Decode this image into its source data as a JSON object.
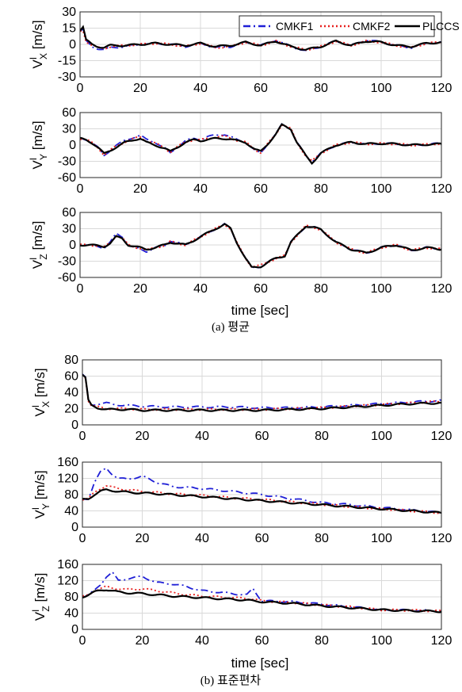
{
  "captions": [
    "(a) 평균",
    "(b) 표준편차"
  ],
  "legend": [
    "CMKF1",
    "CMKF2",
    "PLCCS"
  ],
  "x_axis_title": "time [sec]",
  "colors": {
    "CMKF1": "#1f1fd6",
    "CMKF2": "#e8201e",
    "PLCCS": "#000000",
    "grid": "#d9d9d9",
    "axes": "#262626"
  },
  "chart_data": [
    {
      "type": "line",
      "panel": "a1",
      "ylabel": "V^I_X [m/s]",
      "ylabel_main": "V",
      "ylabel_sup": "I",
      "ylabel_sub": "X",
      "ylabel_unit": "[m/s]",
      "xlim": [
        0,
        120
      ],
      "ylim": [
        -30,
        30
      ],
      "xticks": [
        0,
        20,
        40,
        60,
        80,
        100,
        120
      ],
      "yticks": [
        -30,
        -15,
        0,
        15,
        30
      ],
      "grid": true,
      "legend_position": "top-right",
      "x": [
        0,
        1,
        2,
        4,
        6,
        8,
        10,
        15,
        20,
        25,
        30,
        35,
        40,
        45,
        50,
        55,
        60,
        65,
        70,
        75,
        80,
        85,
        90,
        95,
        100,
        105,
        110,
        115,
        120
      ],
      "series": [
        {
          "name": "CMKF1",
          "values": [
            12,
            14,
            3,
            -2,
            -4,
            -5,
            -3,
            -2,
            0,
            1,
            0,
            -2,
            1,
            -3,
            -2,
            2,
            -1,
            4,
            -2,
            -6,
            -2,
            3,
            -1,
            4,
            2,
            -1,
            -3,
            1,
            2
          ]
        },
        {
          "name": "CMKF2",
          "values": [
            12,
            13,
            3,
            -1,
            -3,
            -4,
            -2,
            -1,
            0,
            1,
            0,
            -2,
            1,
            -3,
            -2,
            2,
            -1,
            3,
            -2,
            -5,
            -2,
            3,
            -1,
            3,
            2,
            -1,
            -3,
            1,
            2
          ]
        },
        {
          "name": "PLCCS",
          "values": [
            13,
            16,
            4,
            0,
            -2,
            -3,
            -1,
            -1,
            0,
            1,
            0,
            -1,
            1,
            -2,
            -1,
            2,
            -1,
            3,
            -2,
            -5,
            -2,
            3,
            -1,
            3,
            2,
            -1,
            -2,
            1,
            2
          ]
        }
      ]
    },
    {
      "type": "line",
      "panel": "a2",
      "ylabel": "V^I_Y [m/s]",
      "ylabel_main": "V",
      "ylabel_sup": "I",
      "ylabel_sub": "Y",
      "ylabel_unit": "[m/s]",
      "xlim": [
        0,
        120
      ],
      "ylim": [
        -60,
        60
      ],
      "xticks": [
        0,
        20,
        40,
        60,
        80,
        100,
        120
      ],
      "yticks": [
        -60,
        -30,
        0,
        30,
        60
      ],
      "grid": true,
      "x": [
        0,
        2,
        4,
        6,
        8,
        10,
        12,
        15,
        18,
        20,
        22,
        25,
        28,
        30,
        32,
        35,
        38,
        40,
        42,
        45,
        48,
        50,
        52,
        55,
        58,
        60,
        62,
        65,
        67,
        70,
        72,
        75,
        77,
        80,
        85,
        90,
        95,
        100,
        105,
        110,
        115,
        120
      ],
      "series": [
        {
          "name": "CMKF1",
          "values": [
            12,
            10,
            5,
            -5,
            -20,
            -10,
            0,
            8,
            15,
            18,
            10,
            5,
            -5,
            -15,
            -5,
            8,
            12,
            10,
            15,
            18,
            20,
            15,
            10,
            5,
            -10,
            -15,
            0,
            20,
            38,
            30,
            5,
            -20,
            -30,
            -15,
            0,
            5,
            2,
            3,
            2,
            0,
            1,
            3
          ]
        },
        {
          "name": "CMKF2",
          "values": [
            12,
            10,
            4,
            -5,
            -18,
            -10,
            -2,
            6,
            12,
            15,
            8,
            3,
            -5,
            -13,
            -5,
            6,
            10,
            9,
            12,
            15,
            16,
            13,
            9,
            5,
            -8,
            -14,
            0,
            20,
            38,
            30,
            5,
            -20,
            -30,
            -15,
            0,
            5,
            2,
            3,
            2,
            0,
            1,
            3
          ]
        },
        {
          "name": "PLCCS",
          "values": [
            12,
            10,
            4,
            -5,
            -16,
            -10,
            -4,
            5,
            10,
            12,
            5,
            0,
            -6,
            -12,
            -5,
            5,
            10,
            8,
            10,
            12,
            12,
            11,
            8,
            5,
            -8,
            -12,
            0,
            20,
            37,
            30,
            5,
            -20,
            -33,
            -15,
            0,
            5,
            2,
            3,
            2,
            0,
            1,
            2
          ]
        }
      ]
    },
    {
      "type": "line",
      "panel": "a3",
      "ylabel": "V^I_Z [m/s]",
      "ylabel_main": "V",
      "ylabel_sup": "I",
      "ylabel_sub": "Z",
      "ylabel_unit": "[m/s]",
      "xlim": [
        0,
        120
      ],
      "ylim": [
        -60,
        60
      ],
      "xticks": [
        0,
        20,
        40,
        60,
        80,
        100,
        120
      ],
      "yticks": [
        -60,
        -30,
        0,
        30,
        60
      ],
      "grid": true,
      "x": [
        0,
        3,
        5,
        8,
        10,
        12,
        14,
        16,
        18,
        20,
        22,
        25,
        28,
        30,
        35,
        40,
        45,
        48,
        50,
        52,
        55,
        57,
        60,
        63,
        65,
        68,
        70,
        75,
        78,
        80,
        85,
        90,
        95,
        100,
        105,
        110,
        115,
        120
      ],
      "series": [
        {
          "name": "CMKF1",
          "values": [
            0,
            0,
            -2,
            -5,
            5,
            20,
            15,
            0,
            -5,
            -8,
            -12,
            -5,
            -2,
            8,
            0,
            15,
            30,
            38,
            30,
            5,
            -25,
            -42,
            -40,
            -30,
            -25,
            -20,
            5,
            35,
            32,
            28,
            5,
            -8,
            -15,
            -5,
            0,
            -10,
            -5,
            -8
          ]
        },
        {
          "name": "CMKF2",
          "values": [
            0,
            0,
            -1,
            -4,
            4,
            17,
            13,
            0,
            -4,
            -6,
            -10,
            -5,
            -1,
            6,
            0,
            15,
            30,
            38,
            30,
            5,
            -25,
            -40,
            -38,
            -30,
            -25,
            -20,
            5,
            35,
            32,
            28,
            5,
            -8,
            -15,
            -5,
            0,
            -10,
            -5,
            -8
          ]
        },
        {
          "name": "PLCCS",
          "values": [
            0,
            0,
            -1,
            -3,
            3,
            15,
            12,
            0,
            -3,
            -5,
            -8,
            -5,
            0,
            5,
            0,
            15,
            30,
            38,
            30,
            5,
            -25,
            -42,
            -40,
            -30,
            -25,
            -20,
            5,
            35,
            32,
            28,
            5,
            -8,
            -15,
            -5,
            0,
            -10,
            -5,
            -8
          ]
        }
      ]
    },
    {
      "type": "line",
      "panel": "b1",
      "ylabel": "V^I_X [m/s]",
      "ylabel_main": "V",
      "ylabel_sup": "I",
      "ylabel_sub": "X",
      "ylabel_unit": "[m/s]",
      "xlim": [
        0,
        120
      ],
      "ylim": [
        0,
        80
      ],
      "xticks": [
        0,
        20,
        40,
        60,
        80,
        100,
        120
      ],
      "yticks": [
        0,
        20,
        40,
        60,
        80
      ],
      "grid": true,
      "x": [
        0,
        1,
        2,
        3,
        5,
        8,
        10,
        15,
        20,
        30,
        40,
        50,
        60,
        70,
        80,
        90,
        100,
        110,
        120
      ],
      "series": [
        {
          "name": "CMKF1",
          "values": [
            62,
            58,
            30,
            24,
            26,
            27,
            25,
            24,
            23,
            22,
            22,
            22,
            21,
            21,
            22,
            24,
            26,
            28,
            30
          ]
        },
        {
          "name": "CMKF2",
          "values": [
            62,
            58,
            30,
            24,
            22,
            20,
            20,
            20,
            19,
            19,
            19,
            19,
            19,
            20,
            21,
            23,
            25,
            27,
            29
          ]
        },
        {
          "name": "PLCCS",
          "values": [
            62,
            58,
            30,
            24,
            21,
            19,
            19,
            19,
            18,
            18,
            18,
            18,
            18,
            19,
            20,
            22,
            24,
            26,
            27
          ]
        }
      ]
    },
    {
      "type": "line",
      "panel": "b2",
      "ylabel": "V^I_Y [m/s]",
      "ylabel_main": "V",
      "ylabel_sup": "I",
      "ylabel_sub": "Y",
      "ylabel_unit": "[m/s]",
      "xlim": [
        0,
        120
      ],
      "ylim": [
        0,
        160
      ],
      "xticks": [
        0,
        20,
        40,
        60,
        80,
        100,
        120
      ],
      "yticks": [
        0,
        40,
        80,
        120,
        160
      ],
      "grid": true,
      "x": [
        0,
        2,
        4,
        6,
        8,
        10,
        12,
        15,
        20,
        25,
        30,
        40,
        50,
        60,
        70,
        80,
        90,
        100,
        110,
        120
      ],
      "series": [
        {
          "name": "CMKF1",
          "values": [
            68,
            70,
            110,
            135,
            145,
            130,
            120,
            118,
            125,
            110,
            100,
            95,
            88,
            80,
            70,
            60,
            55,
            48,
            42,
            35
          ]
        },
        {
          "name": "CMKF2",
          "values": [
            68,
            70,
            85,
            95,
            102,
            98,
            95,
            92,
            88,
            85,
            82,
            78,
            72,
            68,
            62,
            56,
            50,
            45,
            40,
            35
          ]
        },
        {
          "name": "PLCCS",
          "values": [
            68,
            70,
            80,
            88,
            92,
            90,
            88,
            86,
            84,
            82,
            80,
            75,
            70,
            65,
            60,
            55,
            50,
            45,
            40,
            35
          ]
        }
      ]
    },
    {
      "type": "line",
      "panel": "b3",
      "ylabel": "V^I_Z [m/s]",
      "ylabel_main": "V",
      "ylabel_sup": "I",
      "ylabel_sub": "Z",
      "ylabel_unit": "[m/s]",
      "xlim": [
        0,
        120
      ],
      "ylim": [
        0,
        160
      ],
      "xticks": [
        0,
        20,
        40,
        60,
        80,
        100,
        120
      ],
      "yticks": [
        0,
        40,
        80,
        120,
        160
      ],
      "grid": true,
      "x": [
        0,
        2,
        4,
        6,
        8,
        10,
        12,
        15,
        20,
        25,
        30,
        35,
        40,
        45,
        50,
        55,
        57,
        60,
        70,
        80,
        90,
        100,
        110,
        120
      ],
      "series": [
        {
          "name": "CMKF1",
          "values": [
            80,
            85,
            95,
            110,
            130,
            140,
            120,
            125,
            130,
            115,
            112,
            105,
            95,
            92,
            88,
            85,
            100,
            70,
            68,
            62,
            55,
            48,
            47,
            45
          ]
        },
        {
          "name": "CMKF2",
          "values": [
            80,
            85,
            95,
            100,
            105,
            102,
            100,
            98,
            100,
            95,
            90,
            85,
            82,
            80,
            78,
            76,
            75,
            70,
            66,
            60,
            55,
            48,
            47,
            45
          ]
        },
        {
          "name": "PLCCS",
          "values": [
            80,
            85,
            92,
            96,
            98,
            95,
            92,
            90,
            88,
            85,
            82,
            80,
            78,
            76,
            74,
            72,
            70,
            68,
            64,
            58,
            53,
            48,
            46,
            44
          ]
        }
      ]
    }
  ]
}
